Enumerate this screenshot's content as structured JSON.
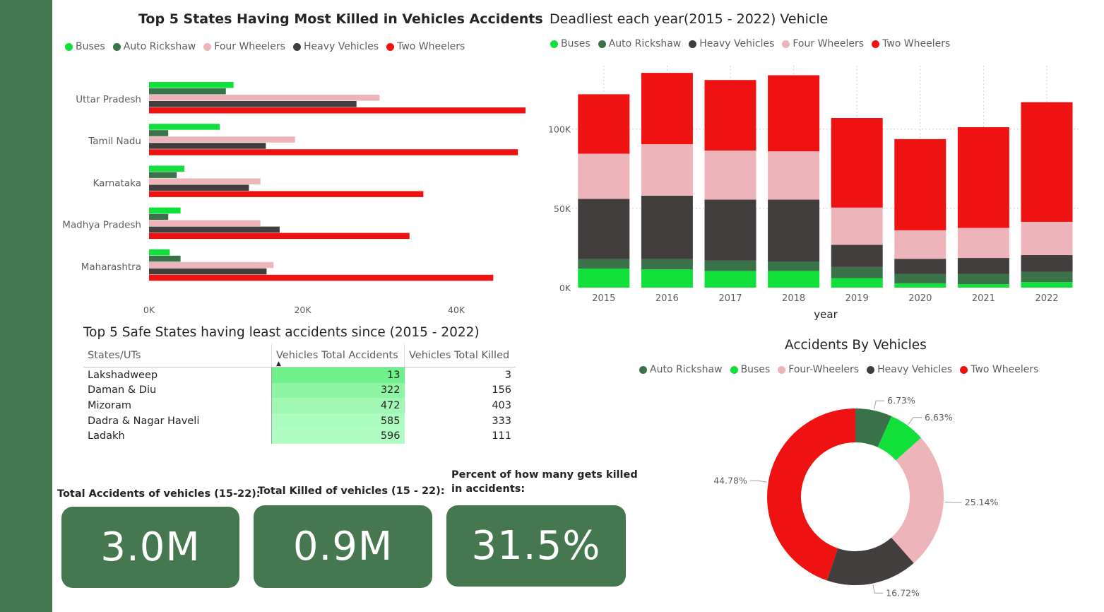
{
  "colors": {
    "buses": "#12e03a",
    "auto_rickshaw": "#3a734a",
    "four_wheelers": "#edb5b9",
    "heavy_vehicles": "#433e3e",
    "two_wheelers": "#ee1212",
    "sidebar": "#46784f"
  },
  "chart_data": [
    {
      "type": "bar",
      "orientation": "horizontal",
      "title": "Top 5 States Having Most Killed in Vehicles Accidents",
      "categories": [
        "Uttar Pradesh",
        "Tamil Nadu",
        "Karnataka",
        "Madhya Pradesh",
        "Maharashtra"
      ],
      "series": [
        {
          "name": "Buses",
          "color_key": "buses",
          "values": [
            11000,
            9200,
            4600,
            4100,
            2700
          ]
        },
        {
          "name": "Auto Rickshaw",
          "color_key": "auto_rickshaw",
          "values": [
            10000,
            2500,
            3600,
            2500,
            4100
          ]
        },
        {
          "name": "Four Wheelers",
          "color_key": "four_wheelers",
          "values": [
            30000,
            19000,
            14500,
            14500,
            16200
          ]
        },
        {
          "name": "Heavy Vehicles",
          "color_key": "heavy_vehicles",
          "values": [
            27000,
            15200,
            13000,
            17000,
            15300
          ]
        },
        {
          "name": "Two Wheelers",
          "color_key": "two_wheelers",
          "values": [
            49000,
            48000,
            35700,
            33900,
            44800
          ]
        }
      ],
      "xlim": [
        0,
        49000
      ],
      "x_ticks": [
        0,
        20000,
        40000
      ],
      "x_tick_labels": [
        "0K",
        "20K",
        "40K"
      ],
      "legend_position": "top-left"
    },
    {
      "type": "bar",
      "stacked": true,
      "title": "Deadliest each year(2015 - 2022) Vehicle",
      "xlabel": "year",
      "categories": [
        "2015",
        "2016",
        "2017",
        "2018",
        "2019",
        "2020",
        "2021",
        "2022"
      ],
      "legend_series": [
        {
          "name": "Buses",
          "color_key": "buses"
        },
        {
          "name": "Auto Rickshaw",
          "color_key": "auto_rickshaw"
        },
        {
          "name": "Heavy Vehicles",
          "color_key": "heavy_vehicles"
        },
        {
          "name": "Four Wheelers",
          "color_key": "four_wheelers"
        },
        {
          "name": "Two Wheelers",
          "color_key": "two_wheelers"
        }
      ],
      "series": [
        {
          "name": "Buses",
          "color_key": "buses",
          "values": [
            12000,
            11500,
            10500,
            10500,
            6000,
            2700,
            2200,
            3500
          ]
        },
        {
          "name": "Auto Rickshaw",
          "color_key": "auto_rickshaw",
          "values": [
            6000,
            6500,
            6500,
            6000,
            7000,
            6000,
            6500,
            6500
          ]
        },
        {
          "name": "Heavy Vehicles",
          "color_key": "heavy_vehicles",
          "values": [
            38000,
            40000,
            38500,
            39000,
            14000,
            9500,
            10000,
            10500
          ]
        },
        {
          "name": "Four Wheelers",
          "color_key": "four_wheelers",
          "values": [
            28500,
            32500,
            31000,
            30500,
            23500,
            18000,
            19000,
            21000
          ]
        },
        {
          "name": "Two Wheelers",
          "color_key": "two_wheelers",
          "values": [
            37500,
            45000,
            44500,
            48000,
            56500,
            57500,
            63500,
            75500
          ]
        }
      ],
      "ylim": [
        0,
        140000
      ],
      "y_ticks": [
        0,
        50000,
        100000
      ],
      "y_tick_labels": [
        "0K",
        "50K",
        "100K"
      ],
      "grid": true,
      "legend_position": "top-left"
    },
    {
      "type": "pie",
      "donut": true,
      "title": "Accidents By Vehicles",
      "slices": [
        {
          "name": "Auto Rickshaw",
          "color_key": "auto_rickshaw",
          "value": 6.73,
          "label": "6.73%"
        },
        {
          "name": "Buses",
          "color_key": "buses",
          "value": 6.63,
          "label": "6.63%"
        },
        {
          "name": "Four-Wheelers",
          "color_key": "four_wheelers",
          "value": 25.14,
          "label": "25.14%"
        },
        {
          "name": "Heavy Vehicles",
          "color_key": "heavy_vehicles",
          "value": 16.72,
          "label": "16.72%"
        },
        {
          "name": "Two Wheelers",
          "color_key": "two_wheelers",
          "value": 44.78,
          "label": "44.78%"
        }
      ],
      "legend_position": "top"
    }
  ],
  "safe_table": {
    "title": "Top 5 Safe States having least accidents since (2015 - 2022)",
    "headers": [
      "States/UTs",
      "Vehicles Total Accidents",
      "Vehicles Total Killed"
    ],
    "rows": [
      {
        "state": "Lakshadweep",
        "accidents": "13",
        "killed": "3",
        "shade": "#6ff08b"
      },
      {
        "state": "Daman & Diu",
        "accidents": "322",
        "killed": "156",
        "shade": "#8df5a3"
      },
      {
        "state": "Mizoram",
        "accidents": "472",
        "killed": "403",
        "shade": "#a0f8b4"
      },
      {
        "state": "Dadra & Nagar Haveli",
        "accidents": "585",
        "killed": "333",
        "shade": "#adfcbf"
      },
      {
        "state": "Ladakh",
        "accidents": "596",
        "killed": "111",
        "shade": "#b0fcc2"
      }
    ]
  },
  "kpis": [
    {
      "label": "Total Accidents of vehicles (15-22):",
      "value": "3.0M"
    },
    {
      "label": "Total Killed of vehicles (15 - 22):",
      "value": "0.9M"
    },
    {
      "label_line1": "Percent of how many gets killed",
      "label_line2": "in accidents:",
      "value": "31.5%"
    }
  ]
}
